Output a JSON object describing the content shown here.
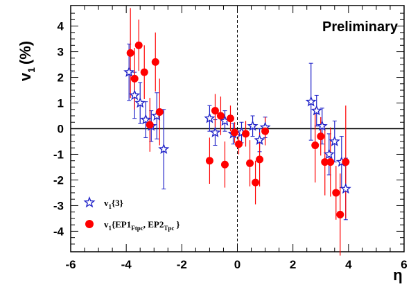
{
  "chart_data": {
    "type": "scatter",
    "annotation": "Preliminary",
    "ylabel_main": "v",
    "ylabel_sub": "1",
    "ylabel_unit": "(%)",
    "xlabel": "η",
    "xlim": [
      -6,
      6
    ],
    "ylim": [
      -4.8,
      4.8
    ],
    "x_ticks": [
      "-6",
      "-4",
      "-2",
      "0",
      "2",
      "4",
      "6"
    ],
    "y_ticks": [
      "-4",
      "-3",
      "-2",
      "-1",
      "0",
      "1",
      "2",
      "3",
      "4"
    ],
    "series_colors": {
      "v1_3": "#1f22c8",
      "v1_ep": "#ff0000"
    },
    "legend": {
      "placement": "bottom-left",
      "entries": [
        {
          "text_main": "v",
          "text_sub": "1",
          "text_rest": "{3}"
        },
        {
          "text_main": "v",
          "text_sub": "1",
          "text_rest_a": "{EP1",
          "text_sub_a": "Ftpc",
          "text_rest_b": ", EP2",
          "text_sub_b": "Tpc",
          "text_rest_c": "}"
        }
      ]
    },
    "series": [
      {
        "key": "v1_3",
        "marker": "star",
        "points": [
          {
            "x": -3.9,
            "y": 2.2,
            "err": 1.1
          },
          {
            "x": -3.7,
            "y": 1.3,
            "err": 0.9
          },
          {
            "x": -3.5,
            "y": 1.0,
            "err": 0.8
          },
          {
            "x": -3.3,
            "y": 0.35,
            "err": 0.7
          },
          {
            "x": -3.1,
            "y": 0.1,
            "err": 0.6
          },
          {
            "x": -2.9,
            "y": 0.5,
            "err": 0.9
          },
          {
            "x": -2.65,
            "y": -0.8,
            "err": 1.55
          },
          {
            "x": -1.0,
            "y": 0.4,
            "err": 0.5
          },
          {
            "x": -0.8,
            "y": -0.15,
            "err": 0.5
          },
          {
            "x": -0.45,
            "y": 0.3,
            "err": 0.4
          },
          {
            "x": -0.15,
            "y": -0.2,
            "err": 0.4
          },
          {
            "x": 0.15,
            "y": -0.15,
            "err": 0.4
          },
          {
            "x": 0.55,
            "y": 0.1,
            "err": 0.4
          },
          {
            "x": 0.8,
            "y": -0.45,
            "err": 0.45
          },
          {
            "x": 1.0,
            "y": 0.05,
            "err": 0.4
          },
          {
            "x": 2.65,
            "y": 1.05,
            "err": 1.5
          },
          {
            "x": 2.85,
            "y": 0.7,
            "err": 0.6
          },
          {
            "x": 3.05,
            "y": 0.1,
            "err": 0.7
          },
          {
            "x": 3.3,
            "y": -1.0,
            "err": 0.8
          },
          {
            "x": 3.5,
            "y": -0.5,
            "err": 0.8
          },
          {
            "x": 3.75,
            "y": -1.3,
            "err": 1.0
          },
          {
            "x": 3.9,
            "y": -2.35,
            "err": 1.2
          }
        ]
      },
      {
        "key": "v1_ep",
        "marker": "circle",
        "points": [
          {
            "x": -3.85,
            "y": 2.95,
            "err": 1.75
          },
          {
            "x": -3.7,
            "y": 1.95,
            "err": 1.2
          },
          {
            "x": -3.55,
            "y": 3.25,
            "err": 1.0
          },
          {
            "x": -3.35,
            "y": 2.2,
            "err": 1.05
          },
          {
            "x": -3.15,
            "y": 0.15,
            "err": 1.05
          },
          {
            "x": -2.95,
            "y": 2.6,
            "err": 1.15
          },
          {
            "x": -2.8,
            "y": 0.65,
            "err": 1.3
          },
          {
            "x": -1.0,
            "y": -1.25,
            "err": 0.9
          },
          {
            "x": -0.8,
            "y": 0.7,
            "err": 0.65
          },
          {
            "x": -0.6,
            "y": 0.5,
            "err": 0.75
          },
          {
            "x": -0.45,
            "y": -1.4,
            "err": 0.9
          },
          {
            "x": -0.25,
            "y": 0.4,
            "err": 0.5
          },
          {
            "x": -0.1,
            "y": -0.15,
            "err": 0.4
          },
          {
            "x": 0.05,
            "y": -0.6,
            "err": 0.4
          },
          {
            "x": 0.3,
            "y": -0.2,
            "err": 0.5
          },
          {
            "x": 0.45,
            "y": -1.35,
            "err": 0.9
          },
          {
            "x": 0.65,
            "y": -2.1,
            "err": 0.85
          },
          {
            "x": 0.8,
            "y": -1.2,
            "err": 1.05
          },
          {
            "x": 1.0,
            "y": -0.1,
            "err": 0.55
          },
          {
            "x": 2.8,
            "y": -0.65,
            "err": 1.45
          },
          {
            "x": 3.0,
            "y": -0.3,
            "err": 0.75
          },
          {
            "x": 3.15,
            "y": -1.3,
            "err": 1.3
          },
          {
            "x": 3.35,
            "y": -1.3,
            "err": 1.35
          },
          {
            "x": 3.55,
            "y": -2.5,
            "err": 1.05
          },
          {
            "x": 3.7,
            "y": -3.35,
            "err": 1.6
          },
          {
            "x": 3.9,
            "y": -1.3,
            "err": 2.2
          }
        ]
      }
    ]
  }
}
